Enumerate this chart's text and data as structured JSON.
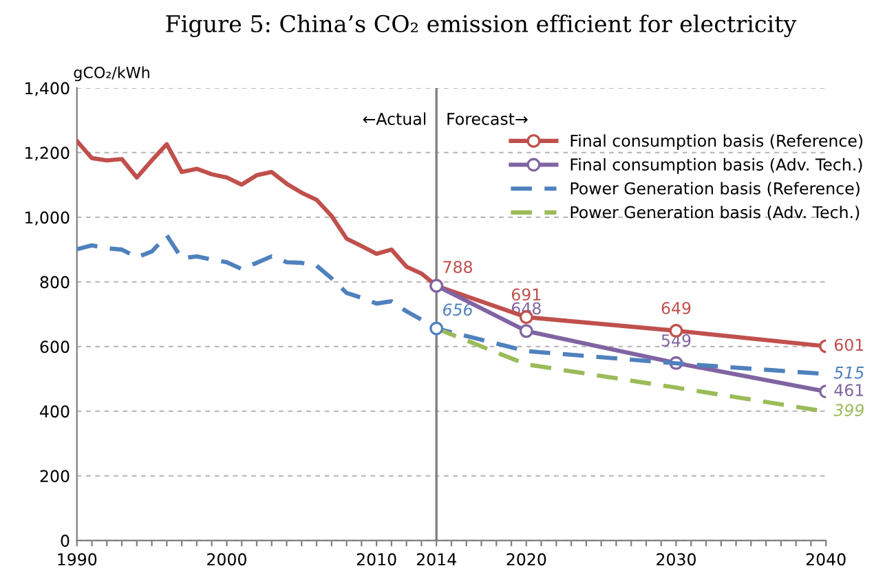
{
  "chart_data": {
    "type": "line",
    "title": "Figure 5: China’s CO₂ emission efficient for electricity",
    "ylabel": "gCO₂/kWh",
    "xlim": [
      1990,
      2040
    ],
    "ylim": [
      0,
      1400
    ],
    "xticks": [
      1990,
      {
        "value": 1991,
        "label": null
      },
      {
        "value": 1992,
        "label": null
      },
      {
        "value": 1993,
        "label": null
      },
      {
        "value": 1994,
        "label": null
      },
      {
        "value": 1995,
        "label": null
      },
      {
        "value": 1996,
        "label": null
      },
      {
        "value": 1997,
        "label": null
      },
      {
        "value": 1998,
        "label": null
      },
      {
        "value": 1999,
        "label": null
      },
      2000,
      {
        "value": 2001,
        "label": null
      },
      {
        "value": 2002,
        "label": null
      },
      {
        "value": 2003,
        "label": null
      },
      {
        "value": 2004,
        "label": null
      },
      {
        "value": 2005,
        "label": null
      },
      {
        "value": 2006,
        "label": null
      },
      {
        "value": 2007,
        "label": null
      },
      {
        "value": 2008,
        "label": null
      },
      {
        "value": 2009,
        "label": null
      },
      2010,
      {
        "value": 2011,
        "label": null
      },
      {
        "value": 2012,
        "label": null
      },
      {
        "value": 2013,
        "label": null
      },
      2014,
      {
        "value": 2015,
        "label": null
      },
      {
        "value": 2016,
        "label": null
      },
      {
        "value": 2017,
        "label": null
      },
      {
        "value": 2018,
        "label": null
      },
      {
        "value": 2019,
        "label": null
      },
      2020,
      {
        "value": 2021,
        "label": null
      },
      {
        "value": 2022,
        "label": null
      },
      {
        "value": 2023,
        "label": null
      },
      {
        "value": 2024,
        "label": null
      },
      {
        "value": 2025,
        "label": null
      },
      {
        "value": 2026,
        "label": null
      },
      {
        "value": 2027,
        "label": null
      },
      {
        "value": 2028,
        "label": null
      },
      {
        "value": 2029,
        "label": null
      },
      2030,
      {
        "value": 2031,
        "label": null
      },
      {
        "value": 2032,
        "label": null
      },
      {
        "value": 2033,
        "label": null
      },
      {
        "value": 2034,
        "label": null
      },
      {
        "value": 2035,
        "label": null
      },
      {
        "value": 2036,
        "label": null
      },
      {
        "value": 2037,
        "label": null
      },
      {
        "value": 2038,
        "label": null
      },
      {
        "value": 2039,
        "label": null
      },
      2040
    ],
    "yticks": [
      0,
      200,
      400,
      600,
      800,
      {
        "value": 1000,
        "label": "1,000"
      },
      {
        "value": 1200,
        "label": "1,200"
      },
      {
        "value": 1400,
        "label": "1,400"
      }
    ],
    "grid": "y",
    "legend": "top right",
    "ref_lines": [
      {
        "axis": "x",
        "value": 2014,
        "color": "#808080",
        "line_style": "solid"
      }
    ],
    "annotations": [
      {
        "text": "←Actual",
        "x": 2014,
        "y": 1300
      },
      {
        "text": "Forecast→",
        "x": 2014,
        "y": 1300
      }
    ],
    "series": [
      {
        "color": "#c0504d",
        "line_style": "solid",
        "marker": "none",
        "x": [
          1990,
          1991,
          1992,
          1993,
          1994,
          1995,
          1996,
          1997,
          1998,
          1999,
          2000,
          2001,
          2002,
          2003,
          2004,
          2005,
          2006,
          2007,
          2008,
          2009,
          2010,
          2011,
          2012,
          2013,
          2014
        ],
        "values": [
          1236,
          1183,
          1176,
          1180,
          1123,
          1176,
          1226,
          1140,
          1150,
          1133,
          1123,
          1101,
          1130,
          1140,
          1104,
          1076,
          1054,
          1004,
          934,
          911,
          887,
          900,
          847,
          826,
          788
        ]
      },
      {
        "name": "Final consumption basis (Reference)",
        "color": "#c0504d",
        "line_style": "solid",
        "marker": "circle",
        "x": [
          2014,
          2020,
          2030,
          2040
        ],
        "values": [
          788,
          691,
          649,
          601
        ],
        "value_labels": [
          "788",
          "691",
          "649",
          "601"
        ]
      },
      {
        "name": "Final consumption basis (Adv. Tech.)",
        "color": "#8064a2",
        "line_style": "solid",
        "marker": "circle",
        "x": [
          2014,
          2020,
          2030,
          2040
        ],
        "values": [
          788,
          648,
          549,
          461
        ],
        "value_labels": [
          null,
          "648",
          "549",
          "461"
        ]
      },
      {
        "name": "Power Generation basis (Reference)",
        "color": "#4f81bd",
        "line_style": "dashed",
        "marker": "none",
        "x": [
          1990,
          1991,
          1992,
          1993,
          1994,
          1995,
          1996,
          1997,
          1998,
          1999,
          2000,
          2001,
          2002,
          2003,
          2004,
          2005,
          2006,
          2007,
          2008,
          2009,
          2010,
          2011,
          2012,
          2013,
          2014,
          2020,
          2030,
          2040
        ],
        "values": [
          901,
          913,
          904,
          900,
          876,
          894,
          944,
          873,
          879,
          869,
          861,
          840,
          859,
          879,
          861,
          859,
          850,
          811,
          766,
          751,
          733,
          740,
          709,
          683,
          656,
          586,
          548,
          515
        ],
        "value_labels": [
          null,
          null,
          null,
          null,
          null,
          null,
          null,
          null,
          null,
          null,
          null,
          null,
          null,
          null,
          null,
          null,
          null,
          null,
          null,
          null,
          null,
          null,
          null,
          null,
          null,
          null,
          null,
          "515"
        ]
      },
      {
        "name": "Power Generation basis (Adv. Tech.)",
        "color": "#9bbb59",
        "line_style": "dashed",
        "marker": "none",
        "x": [
          2014,
          2020,
          2030,
          2040
        ],
        "values": [
          656,
          545,
          473,
          399
        ],
        "value_labels": [
          null,
          null,
          null,
          "399"
        ]
      },
      {
        "type": "scatter",
        "color": "#4f81bd",
        "marker": "circle",
        "x": [
          2014
        ],
        "values": [
          656
        ],
        "value_labels": [
          "656"
        ]
      }
    ]
  }
}
